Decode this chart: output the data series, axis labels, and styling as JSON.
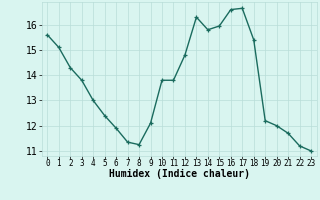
{
  "x": [
    0,
    1,
    2,
    3,
    4,
    5,
    6,
    7,
    8,
    9,
    10,
    11,
    12,
    13,
    14,
    15,
    16,
    17,
    18,
    19,
    20,
    21,
    22,
    23
  ],
  "y": [
    15.6,
    15.1,
    14.3,
    13.8,
    13.0,
    12.4,
    11.9,
    11.35,
    11.25,
    12.1,
    13.8,
    13.8,
    14.8,
    16.3,
    15.8,
    15.95,
    16.6,
    16.65,
    15.4,
    12.2,
    12.0,
    11.7,
    11.2,
    11.0
  ],
  "line_color": "#1a6b5e",
  "marker": "+",
  "bg_color": "#d9f5f0",
  "grid_color": "#b8ddd8",
  "xlabel": "Humidex (Indice chaleur)",
  "xlim": [
    -0.5,
    23.5
  ],
  "ylim": [
    10.8,
    16.9
  ],
  "yticks": [
    11,
    12,
    13,
    14,
    15,
    16
  ],
  "xticks": [
    0,
    1,
    2,
    3,
    4,
    5,
    6,
    7,
    8,
    9,
    10,
    11,
    12,
    13,
    14,
    15,
    16,
    17,
    18,
    19,
    20,
    21,
    22,
    23
  ],
  "xlabel_fontsize": 7,
  "tick_fontsize": 7,
  "xtick_fontsize": 5.5,
  "linewidth": 1.0,
  "markersize": 3.5,
  "markeredgewidth": 0.9
}
